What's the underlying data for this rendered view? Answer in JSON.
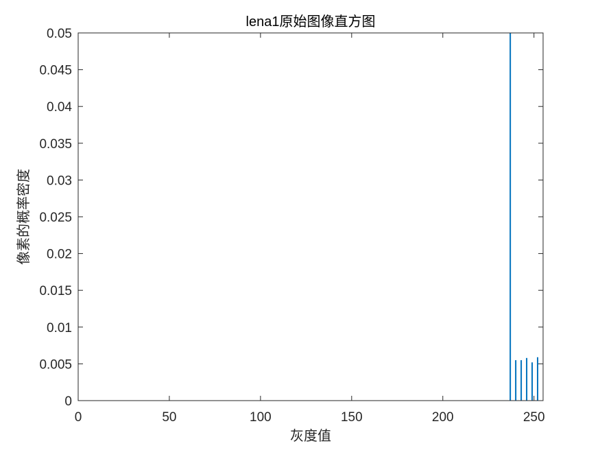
{
  "chart_data": {
    "type": "bar",
    "title": "lena1原始图像直方图",
    "xlabel": "灰度值",
    "ylabel": "像素的概率密度",
    "xlim": [
      0,
      255
    ],
    "ylim": [
      0,
      0.05
    ],
    "xticks": [
      0,
      50,
      100,
      150,
      200,
      250
    ],
    "xtick_labels": [
      "0",
      "50",
      "100",
      "150",
      "200",
      "250"
    ],
    "yticks": [
      0,
      0.005,
      0.01,
      0.015,
      0.02,
      0.025,
      0.03,
      0.035,
      0.04,
      0.045,
      0.05
    ],
    "ytick_labels": [
      "0",
      "0.005",
      "0.01",
      "0.015",
      "0.02",
      "0.025",
      "0.03",
      "0.035",
      "0.04",
      "0.045",
      "0.05"
    ],
    "grid": false,
    "color": "#0072BD",
    "series": [
      {
        "x": [
          237,
          240,
          243,
          246,
          249,
          252
        ],
        "values": [
          0.05,
          0.0055,
          0.0055,
          0.0058,
          0.0052,
          0.0059
        ]
      }
    ]
  }
}
